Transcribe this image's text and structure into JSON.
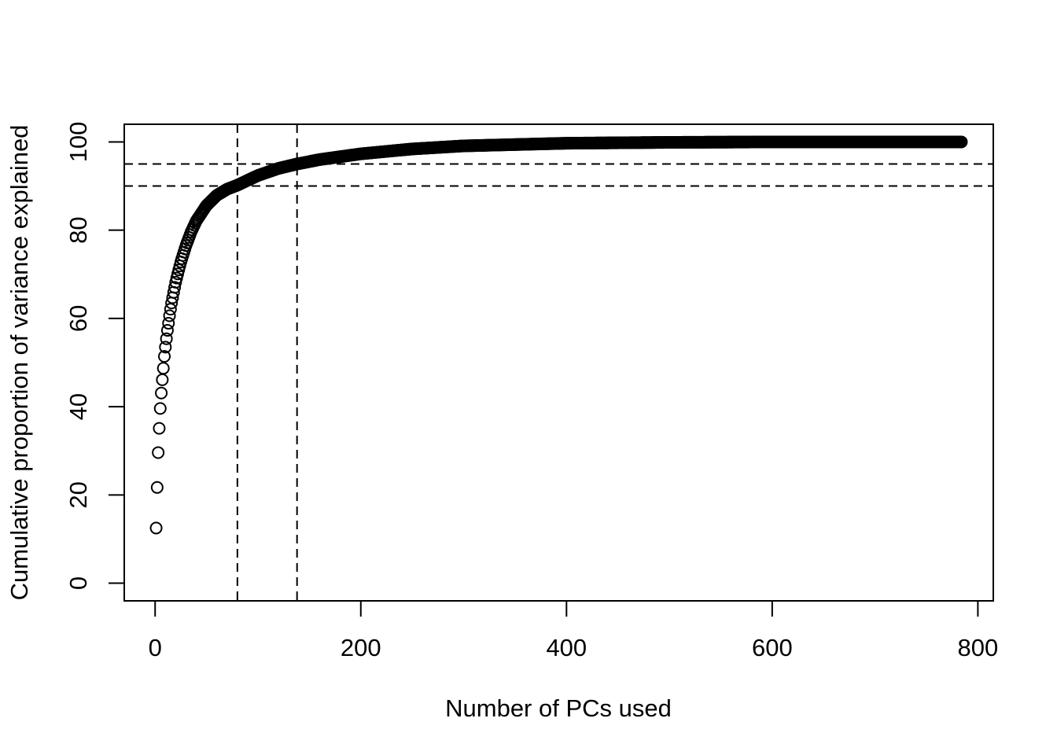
{
  "chart_data": {
    "type": "scatter",
    "title": "",
    "xlabel": "Number of PCs used",
    "ylabel": "Cumulative proportion of variance explained",
    "xlim": [
      -30,
      815
    ],
    "ylim": [
      -4,
      104
    ],
    "x_ticks": [
      0,
      200,
      400,
      600,
      800
    ],
    "y_ticks": [
      0,
      20,
      40,
      60,
      80,
      100
    ],
    "grid": false,
    "legend": "none",
    "marker": "open-circle",
    "color": "#000000",
    "reference_lines": {
      "horizontal": [
        90,
        95
      ],
      "vertical": [
        80,
        138
      ],
      "style": "dashed"
    },
    "n_points": 784,
    "anchor_points": {
      "x": [
        1,
        2,
        3,
        4,
        5,
        6,
        7,
        8,
        9,
        10,
        11,
        12,
        13,
        14,
        15,
        16,
        18,
        20,
        22,
        25,
        30,
        35,
        40,
        50,
        60,
        70,
        80,
        100,
        120,
        138,
        160,
        200,
        250,
        300,
        400,
        500,
        600,
        700,
        784
      ],
      "y": [
        12.5,
        21.7,
        29.6,
        35.1,
        39.6,
        43.1,
        46.1,
        48.7,
        51.4,
        53.5,
        55.4,
        57.3,
        58.9,
        60.6,
        62.1,
        63.5,
        65.9,
        68.2,
        70.1,
        72.8,
        76.5,
        79.6,
        82.1,
        85.6,
        87.9,
        89.3,
        90.2,
        92.4,
        94.0,
        95.0,
        96.0,
        97.3,
        98.4,
        99.1,
        99.7,
        99.9,
        100.0,
        100.0,
        100.0
      ]
    }
  }
}
